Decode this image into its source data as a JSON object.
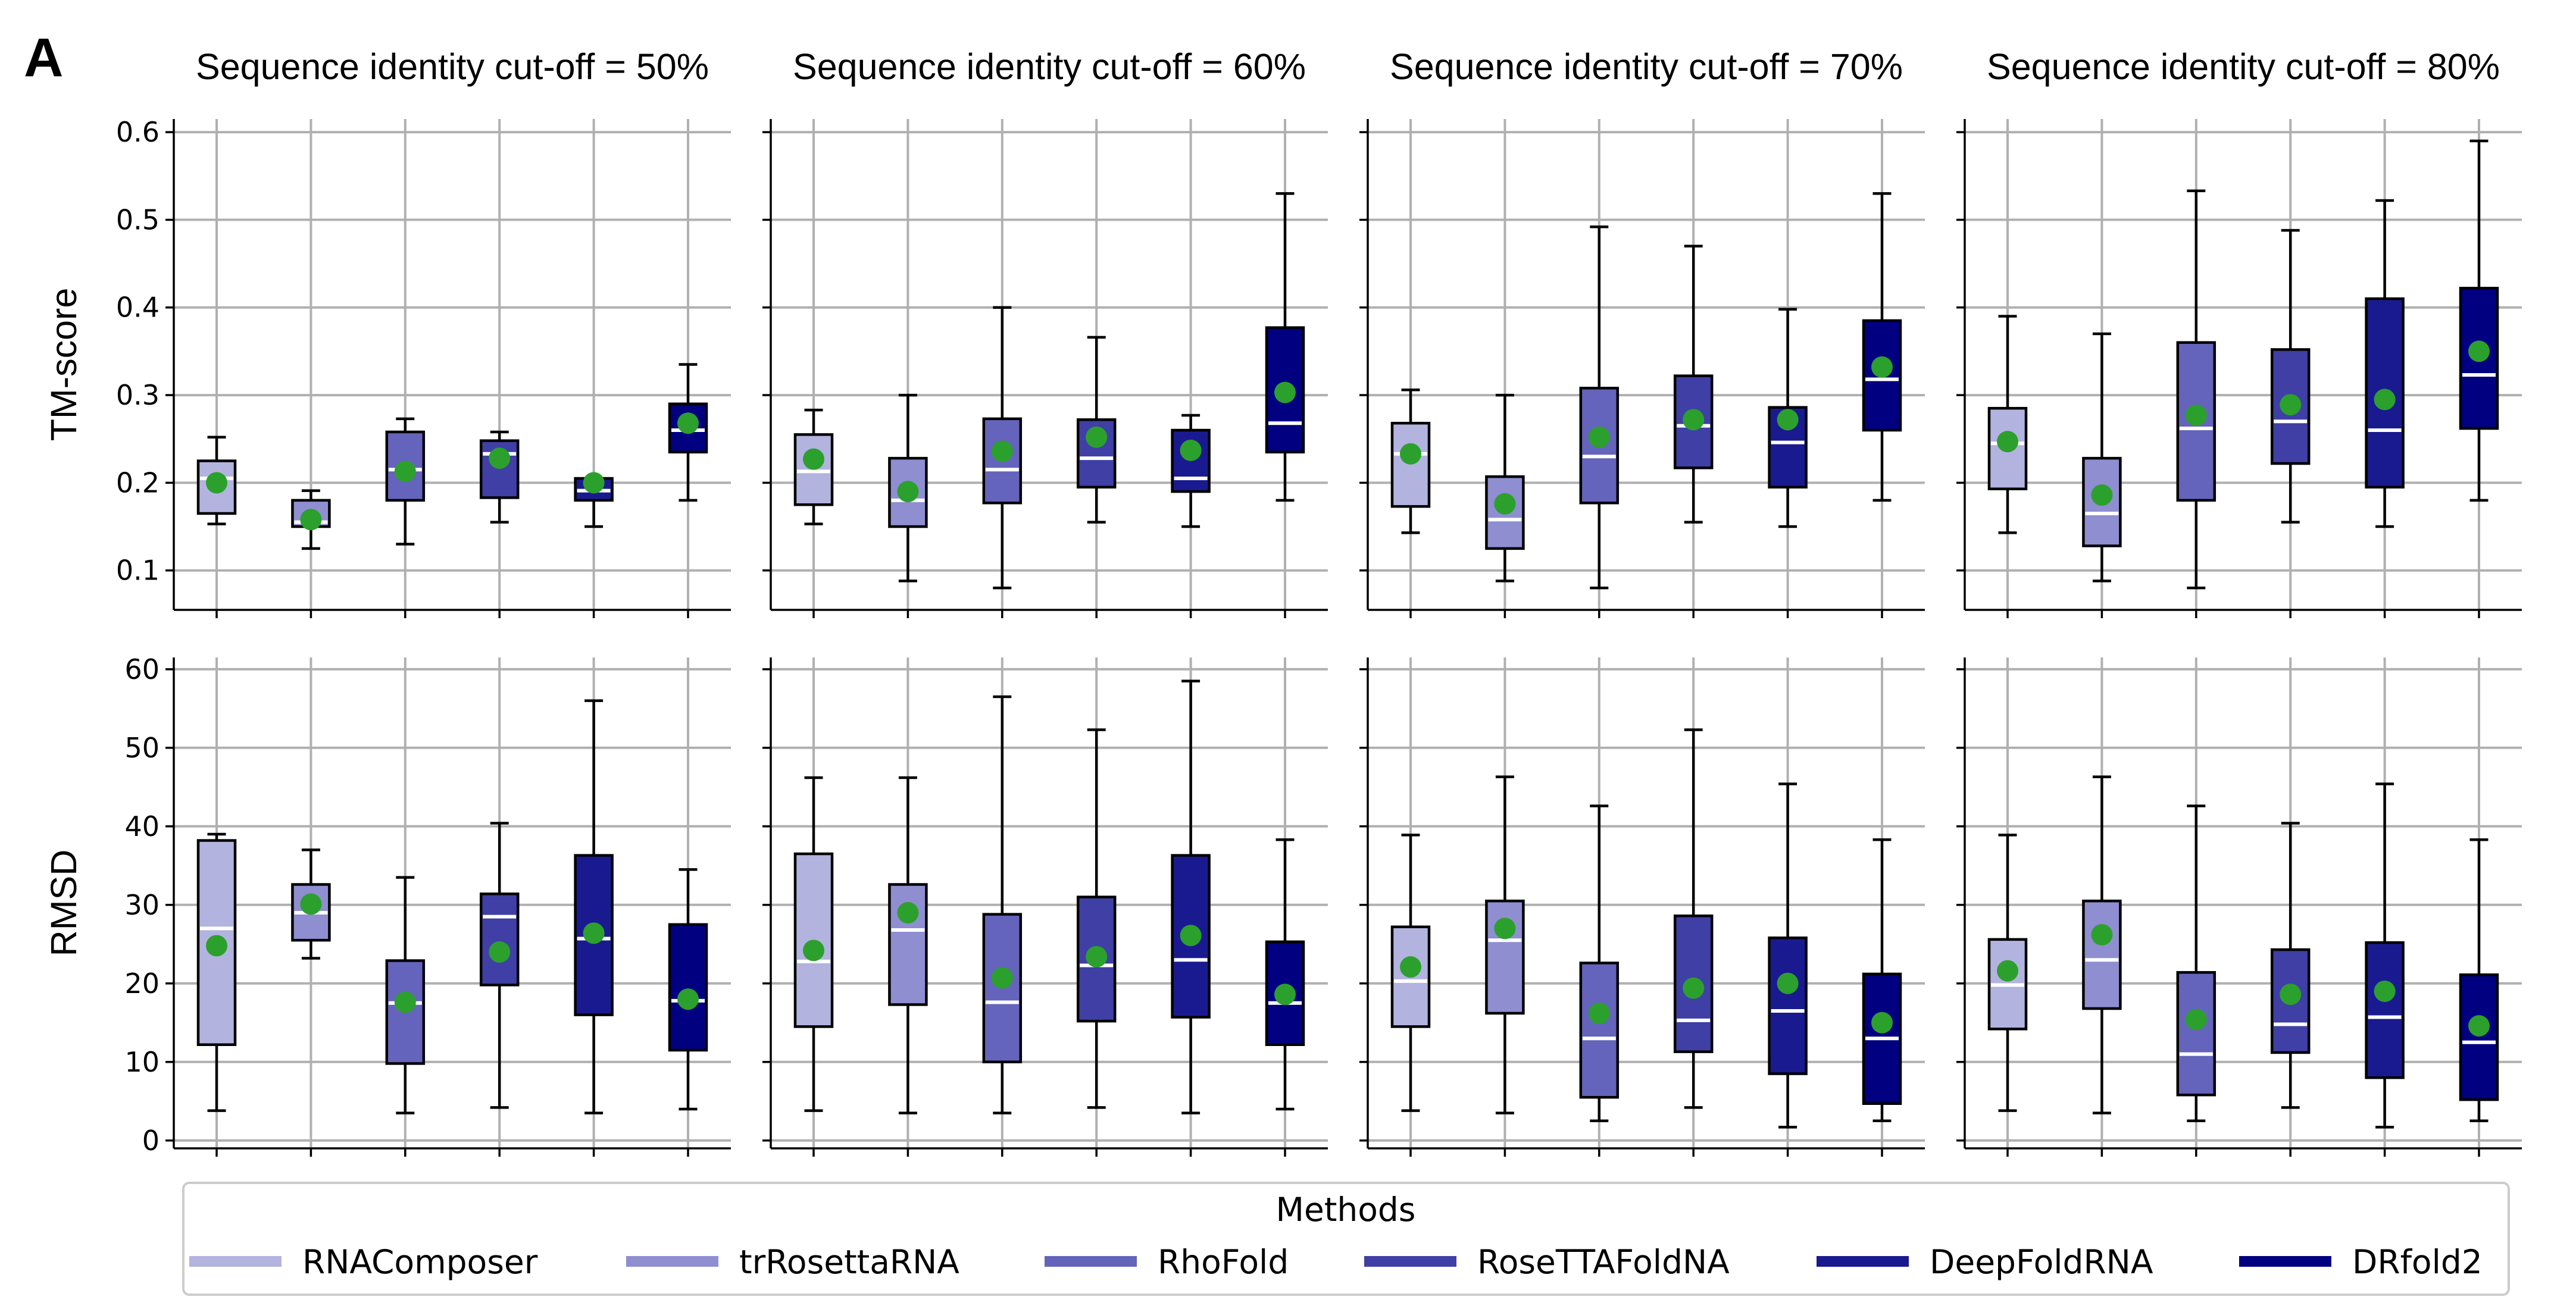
{
  "figure": {
    "panel_letter": "A",
    "legend_title": "Methods"
  },
  "chart_data": {
    "type": "box",
    "methods": [
      "RNAComposer",
      "trRosettaRNA",
      "RhoFold",
      "RoseTTAFoldNA",
      "DeepFoldRNA",
      "DRfold2"
    ],
    "method_colors": [
      "#b3b3e0",
      "#8e8ed0",
      "#6464bc",
      "#3f3fa6",
      "#1a1a90",
      "#000080"
    ],
    "mean_color": "#2ca02c",
    "median_color": "#ffffff",
    "rows": [
      {
        "metric": "TM-score",
        "ylabel": "TM-score",
        "ylim": [
          0.055,
          0.615
        ],
        "ticks": [
          0.1,
          0.2,
          0.3,
          0.4,
          0.5,
          0.6
        ],
        "tick_labels": [
          "0.1",
          "0.2",
          "0.3",
          "0.4",
          "0.5",
          "0.6"
        ]
      },
      {
        "metric": "RMSD",
        "ylabel": "RMSD",
        "ylim": [
          -1,
          61.5
        ],
        "ticks": [
          0,
          10,
          20,
          30,
          40,
          50,
          60
        ],
        "tick_labels": [
          "0",
          "10",
          "20",
          "30",
          "40",
          "50",
          "60"
        ]
      }
    ],
    "panels": [
      {
        "title": "Sequence identity cut-off = 50%",
        "TM-score": [
          {
            "wlo": 0.153,
            "q1": 0.165,
            "med": 0.205,
            "q3": 0.225,
            "whi": 0.252,
            "mean": 0.2
          },
          {
            "wlo": 0.125,
            "q1": 0.15,
            "med": 0.155,
            "q3": 0.18,
            "whi": 0.191,
            "mean": 0.158
          },
          {
            "wlo": 0.13,
            "q1": 0.18,
            "med": 0.215,
            "q3": 0.258,
            "whi": 0.273,
            "mean": 0.213
          },
          {
            "wlo": 0.155,
            "q1": 0.183,
            "med": 0.233,
            "q3": 0.248,
            "whi": 0.258,
            "mean": 0.228
          },
          {
            "wlo": 0.15,
            "q1": 0.18,
            "med": 0.191,
            "q3": 0.205,
            "whi": 0.205,
            "mean": 0.2
          },
          {
            "wlo": 0.18,
            "q1": 0.235,
            "med": 0.26,
            "q3": 0.29,
            "whi": 0.335,
            "mean": 0.268
          }
        ],
        "RMSD": [
          {
            "wlo": 3.8,
            "q1": 12.2,
            "med": 27.0,
            "q3": 38.2,
            "whi": 39.0,
            "mean": 24.8
          },
          {
            "wlo": 23.2,
            "q1": 25.5,
            "med": 29.0,
            "q3": 32.6,
            "whi": 37.0,
            "mean": 30.1
          },
          {
            "wlo": 3.5,
            "q1": 9.8,
            "med": 17.5,
            "q3": 22.9,
            "whi": 33.5,
            "mean": 17.6
          },
          {
            "wlo": 4.2,
            "q1": 19.8,
            "med": 28.5,
            "q3": 31.4,
            "whi": 40.4,
            "mean": 24.0
          },
          {
            "wlo": 3.5,
            "q1": 16.0,
            "med": 25.7,
            "q3": 36.3,
            "whi": 56.0,
            "mean": 26.4
          },
          {
            "wlo": 4.0,
            "q1": 11.5,
            "med": 17.8,
            "q3": 27.5,
            "whi": 34.5,
            "mean": 18.0
          }
        ]
      },
      {
        "title": "Sequence identity cut-off = 60%",
        "TM-score": [
          {
            "wlo": 0.153,
            "q1": 0.175,
            "med": 0.213,
            "q3": 0.255,
            "whi": 0.283,
            "mean": 0.227
          },
          {
            "wlo": 0.088,
            "q1": 0.15,
            "med": 0.18,
            "q3": 0.228,
            "whi": 0.3,
            "mean": 0.19
          },
          {
            "wlo": 0.08,
            "q1": 0.177,
            "med": 0.215,
            "q3": 0.273,
            "whi": 0.4,
            "mean": 0.236
          },
          {
            "wlo": 0.155,
            "q1": 0.195,
            "med": 0.228,
            "q3": 0.272,
            "whi": 0.366,
            "mean": 0.252
          },
          {
            "wlo": 0.15,
            "q1": 0.19,
            "med": 0.205,
            "q3": 0.26,
            "whi": 0.277,
            "mean": 0.237
          },
          {
            "wlo": 0.18,
            "q1": 0.235,
            "med": 0.268,
            "q3": 0.377,
            "whi": 0.53,
            "mean": 0.303
          }
        ],
        "RMSD": [
          {
            "wlo": 3.8,
            "q1": 14.5,
            "med": 22.8,
            "q3": 36.5,
            "whi": 46.2,
            "mean": 24.2
          },
          {
            "wlo": 3.5,
            "q1": 17.3,
            "med": 26.8,
            "q3": 32.6,
            "whi": 46.2,
            "mean": 29.0
          },
          {
            "wlo": 3.5,
            "q1": 10.0,
            "med": 17.6,
            "q3": 28.8,
            "whi": 56.5,
            "mean": 20.7
          },
          {
            "wlo": 4.2,
            "q1": 15.2,
            "med": 22.3,
            "q3": 31.0,
            "whi": 52.3,
            "mean": 23.4
          },
          {
            "wlo": 3.5,
            "q1": 15.7,
            "med": 23.0,
            "q3": 36.3,
            "whi": 58.5,
            "mean": 26.1
          },
          {
            "wlo": 4.0,
            "q1": 12.2,
            "med": 17.5,
            "q3": 25.3,
            "whi": 38.3,
            "mean": 18.6
          }
        ]
      },
      {
        "title": "Sequence identity cut-off = 70%",
        "TM-score": [
          {
            "wlo": 0.143,
            "q1": 0.173,
            "med": 0.233,
            "q3": 0.268,
            "whi": 0.306,
            "mean": 0.233
          },
          {
            "wlo": 0.088,
            "q1": 0.125,
            "med": 0.158,
            "q3": 0.207,
            "whi": 0.3,
            "mean": 0.176
          },
          {
            "wlo": 0.08,
            "q1": 0.177,
            "med": 0.23,
            "q3": 0.308,
            "whi": 0.492,
            "mean": 0.252
          },
          {
            "wlo": 0.155,
            "q1": 0.217,
            "med": 0.265,
            "q3": 0.322,
            "whi": 0.47,
            "mean": 0.272
          },
          {
            "wlo": 0.15,
            "q1": 0.195,
            "med": 0.246,
            "q3": 0.286,
            "whi": 0.398,
            "mean": 0.272
          },
          {
            "wlo": 0.18,
            "q1": 0.26,
            "med": 0.318,
            "q3": 0.385,
            "whi": 0.53,
            "mean": 0.332
          }
        ],
        "RMSD": [
          {
            "wlo": 3.8,
            "q1": 14.5,
            "med": 20.3,
            "q3": 27.2,
            "whi": 38.9,
            "mean": 22.1
          },
          {
            "wlo": 3.5,
            "q1": 16.2,
            "med": 25.5,
            "q3": 30.5,
            "whi": 46.3,
            "mean": 27.0
          },
          {
            "wlo": 2.5,
            "q1": 5.5,
            "med": 13.0,
            "q3": 22.6,
            "whi": 42.6,
            "mean": 16.2
          },
          {
            "wlo": 4.2,
            "q1": 11.3,
            "med": 15.3,
            "q3": 28.6,
            "whi": 52.3,
            "mean": 19.4
          },
          {
            "wlo": 1.7,
            "q1": 8.5,
            "med": 16.5,
            "q3": 25.8,
            "whi": 45.4,
            "mean": 20.0
          },
          {
            "wlo": 2.5,
            "q1": 4.7,
            "med": 13.0,
            "q3": 21.2,
            "whi": 38.3,
            "mean": 15.0
          }
        ]
      },
      {
        "title": "Sequence identity cut-off = 80%",
        "TM-score": [
          {
            "wlo": 0.143,
            "q1": 0.193,
            "med": 0.245,
            "q3": 0.285,
            "whi": 0.39,
            "mean": 0.247
          },
          {
            "wlo": 0.088,
            "q1": 0.128,
            "med": 0.165,
            "q3": 0.228,
            "whi": 0.37,
            "mean": 0.186
          },
          {
            "wlo": 0.08,
            "q1": 0.18,
            "med": 0.262,
            "q3": 0.36,
            "whi": 0.533,
            "mean": 0.277
          },
          {
            "wlo": 0.155,
            "q1": 0.222,
            "med": 0.27,
            "q3": 0.352,
            "whi": 0.488,
            "mean": 0.289
          },
          {
            "wlo": 0.15,
            "q1": 0.195,
            "med": 0.26,
            "q3": 0.41,
            "whi": 0.522,
            "mean": 0.295
          },
          {
            "wlo": 0.18,
            "q1": 0.262,
            "med": 0.323,
            "q3": 0.422,
            "whi": 0.59,
            "mean": 0.35
          }
        ],
        "RMSD": [
          {
            "wlo": 3.8,
            "q1": 14.2,
            "med": 19.8,
            "q3": 25.6,
            "whi": 38.9,
            "mean": 21.6
          },
          {
            "wlo": 3.5,
            "q1": 16.8,
            "med": 23.0,
            "q3": 30.5,
            "whi": 46.3,
            "mean": 26.2
          },
          {
            "wlo": 2.5,
            "q1": 5.8,
            "med": 11.0,
            "q3": 21.4,
            "whi": 42.6,
            "mean": 15.4
          },
          {
            "wlo": 4.2,
            "q1": 11.2,
            "med": 14.8,
            "q3": 24.3,
            "whi": 40.4,
            "mean": 18.6
          },
          {
            "wlo": 1.7,
            "q1": 8.0,
            "med": 15.7,
            "q3": 25.2,
            "whi": 45.4,
            "mean": 19.0
          },
          {
            "wlo": 2.5,
            "q1": 5.2,
            "med": 12.5,
            "q3": 21.1,
            "whi": 38.3,
            "mean": 14.6
          }
        ]
      }
    ]
  }
}
